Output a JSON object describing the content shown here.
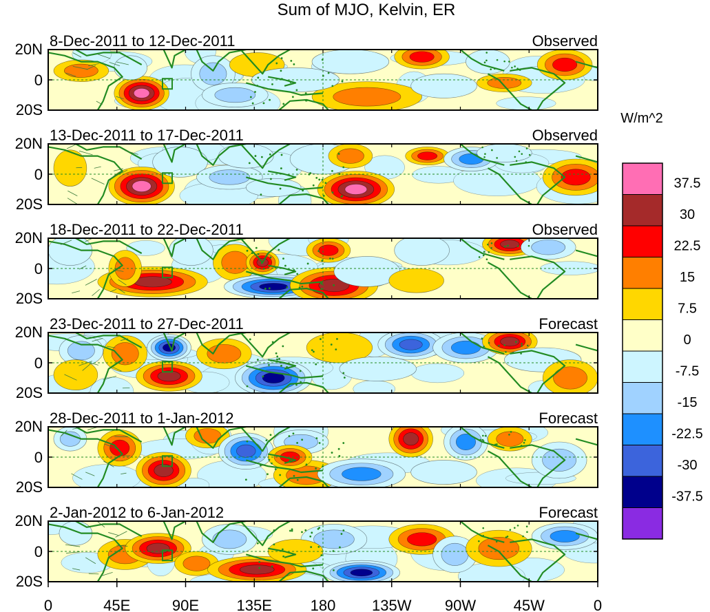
{
  "title": "Sum of MJO, Kelvin, ER",
  "units": "W/m^2",
  "lat_labels": [
    "20N",
    "0",
    "20S"
  ],
  "lon_labels": [
    "0",
    "45E",
    "90E",
    "135E",
    "180",
    "135W",
    "90W",
    "45W",
    "0"
  ],
  "panels": [
    {
      "period": "8-Dec-2011 to 12-Dec-2011",
      "status": "Observed"
    },
    {
      "period": "13-Dec-2011 to 17-Dec-2011",
      "status": "Observed"
    },
    {
      "period": "18-Dec-2011 to 22-Dec-2011",
      "status": "Observed"
    },
    {
      "period": "23-Dec-2011 to 27-Dec-2011",
      "status": "Forecast"
    },
    {
      "period": "28-Dec-2011 to 1-Jan-2012",
      "status": "Forecast"
    },
    {
      "period": "2-Jan-2012 to 6-Jan-2012",
      "status": "Forecast"
    }
  ],
  "colorbar": {
    "labels": [
      "37.5",
      "30",
      "22.5",
      "15",
      "7.5",
      "0",
      "-7.5",
      "-15",
      "-22.5",
      "-30",
      "-37.5"
    ],
    "colors": [
      "#ff6eb4",
      "#a52a2a",
      "#ff0000",
      "#ff7f00",
      "#ffd700",
      "#ffffc8",
      "#cdf5ff",
      "#a0d2ff",
      "#1e90ff",
      "#3c64dc",
      "#00008c",
      "#8a2be2"
    ]
  },
  "colors": {
    "coast": "#228b22",
    "equator": "#228b22",
    "box": "#228b22"
  }
}
